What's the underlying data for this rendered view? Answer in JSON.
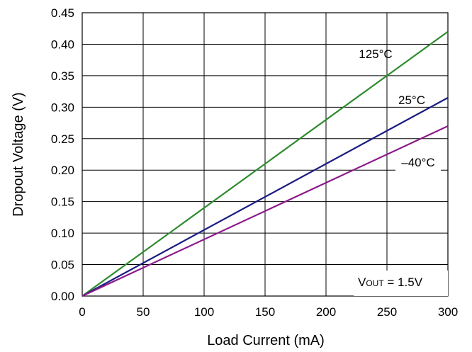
{
  "chart_data": {
    "type": "line",
    "xlabel": "Load Current (mA)",
    "ylabel": "Dropout Voltage (V)",
    "xlim": [
      0,
      300
    ],
    "ylim": [
      0,
      0.45
    ],
    "xticks": [
      0,
      50,
      100,
      150,
      200,
      250,
      300
    ],
    "xtick_labels": [
      "0",
      "50",
      "100",
      "150",
      "200",
      "250",
      "300"
    ],
    "yticks": [
      0,
      0.05,
      0.1,
      0.15,
      0.2,
      0.25,
      0.3,
      0.35,
      0.4,
      0.45
    ],
    "ytick_labels": [
      "0.00",
      "0.05",
      "0.10",
      "0.15",
      "0.20",
      "0.25",
      "0.30",
      "0.35",
      "0.40",
      "0.45"
    ],
    "grid": true,
    "series": [
      {
        "name": "125°C",
        "color": "#2e8b2e",
        "x": [
          0,
          300
        ],
        "y": [
          0,
          0.42
        ]
      },
      {
        "name": "25°C",
        "color": "#1a1a80",
        "x": [
          0,
          300
        ],
        "y": [
          0,
          0.315
        ]
      },
      {
        "name": "–40°C",
        "color": "#8b1a8b",
        "x": [
          0,
          300
        ],
        "y": [
          0,
          0.27
        ]
      }
    ],
    "annotation": {
      "main": "V",
      "sub": "OUT",
      "rest": " = 1.5V"
    }
  }
}
